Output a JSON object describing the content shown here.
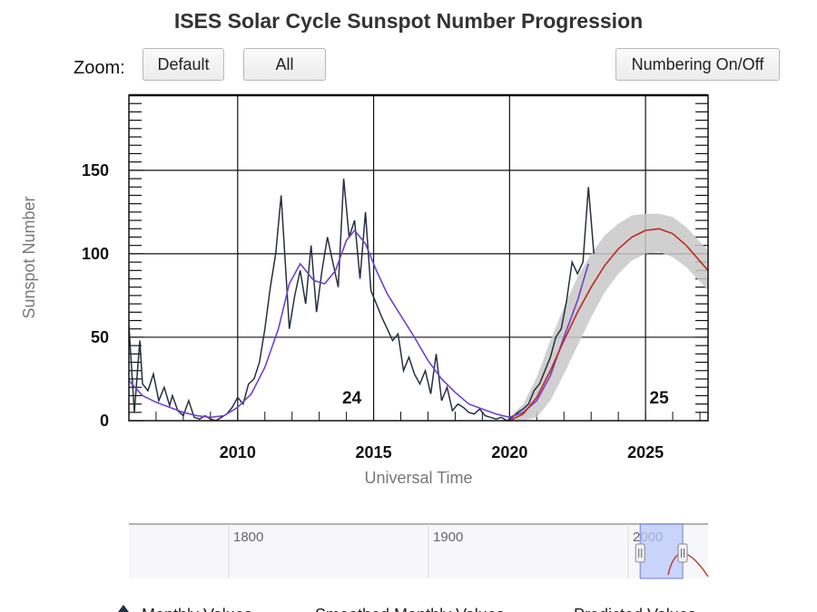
{
  "title": "ISES Solar Cycle Sunspot Number Progression",
  "toolbar": {
    "zoom_label": "Zoom:",
    "default_label": "Default",
    "all_label": "All",
    "numbering_label": "Numbering On/Off"
  },
  "colors": {
    "monthly": "#243040",
    "smoothed": "#7040d0",
    "predicted": "#c0291d",
    "prediction_band": "#c8c8c8",
    "navigator_selection": "#b8c8f8"
  },
  "chart_data": {
    "type": "line",
    "title": "ISES Solar Cycle Sunspot Number Progression",
    "xlabel": "Universal Time",
    "ylabel": "Sunspot Number",
    "xlim": [
      2006.0,
      2027.3
    ],
    "ylim": [
      0,
      195
    ],
    "x_ticks": [
      2010,
      2015,
      2020,
      2025
    ],
    "y_ticks": [
      0,
      50,
      100,
      150
    ],
    "grid": true,
    "cycle_labels": [
      {
        "label": "24",
        "x": 2014.2
      },
      {
        "label": "25",
        "x": 2025.5
      }
    ],
    "series": [
      {
        "name": "Monthly Values",
        "x": [
          2006.0,
          2006.2,
          2006.4,
          2006.5,
          2006.7,
          2006.9,
          2007.1,
          2007.3,
          2007.5,
          2007.6,
          2007.8,
          2008.0,
          2008.2,
          2008.4,
          2008.6,
          2008.8,
          2009.0,
          2009.2,
          2009.4,
          2009.6,
          2009.8,
          2010.0,
          2010.2,
          2010.4,
          2010.6,
          2010.8,
          2011.0,
          2011.2,
          2011.4,
          2011.6,
          2011.8,
          2011.9,
          2012.1,
          2012.3,
          2012.5,
          2012.7,
          2012.9,
          2013.1,
          2013.3,
          2013.5,
          2013.7,
          2013.9,
          2014.1,
          2014.3,
          2014.5,
          2014.7,
          2014.9,
          2015.1,
          2015.3,
          2015.5,
          2015.7,
          2015.9,
          2016.1,
          2016.3,
          2016.5,
          2016.7,
          2016.9,
          2017.1,
          2017.3,
          2017.5,
          2017.7,
          2017.9,
          2018.1,
          2018.3,
          2018.5,
          2018.7,
          2018.9,
          2019.1,
          2019.3,
          2019.5,
          2019.7,
          2019.9,
          2020.1,
          2020.3,
          2020.5,
          2020.7,
          2020.9,
          2021.1,
          2021.3,
          2021.5,
          2021.7,
          2021.9,
          2022.1,
          2022.3,
          2022.5,
          2022.7,
          2022.9,
          2023.0,
          2023.1
        ],
        "y": [
          57,
          5,
          48,
          22,
          18,
          28,
          12,
          20,
          9,
          15,
          6,
          3,
          12,
          2,
          1,
          3,
          1,
          0,
          2,
          4,
          8,
          14,
          10,
          22,
          25,
          35,
          55,
          80,
          100,
          135,
          82,
          55,
          75,
          90,
          70,
          105,
          65,
          90,
          110,
          95,
          80,
          145,
          110,
          120,
          85,
          125,
          78,
          70,
          62,
          55,
          48,
          52,
          30,
          38,
          28,
          22,
          30,
          16,
          40,
          12,
          20,
          6,
          10,
          8,
          5,
          4,
          7,
          3,
          2,
          1,
          2,
          0,
          2,
          5,
          7,
          10,
          18,
          22,
          30,
          38,
          50,
          55,
          72,
          95,
          88,
          95,
          140,
          120,
          100
        ],
        "color": "#243040"
      },
      {
        "name": "Smoothed Monthly Values",
        "x": [
          2006.0,
          2006.5,
          2007.0,
          2007.5,
          2008.0,
          2008.5,
          2009.0,
          2009.5,
          2010.0,
          2010.5,
          2011.0,
          2011.5,
          2011.9,
          2012.3,
          2012.8,
          2013.2,
          2013.6,
          2014.0,
          2014.3,
          2014.7,
          2015.1,
          2015.5,
          2016.0,
          2016.5,
          2017.0,
          2017.5,
          2018.0,
          2018.5,
          2019.0,
          2019.5,
          2020.0,
          2020.5,
          2021.0,
          2021.5,
          2022.0,
          2022.5,
          2022.9
        ],
        "y": [
          24,
          15,
          11,
          8,
          5,
          3,
          2,
          3,
          8,
          16,
          32,
          55,
          82,
          94,
          84,
          82,
          90,
          108,
          114,
          106,
          90,
          76,
          63,
          50,
          36,
          25,
          17,
          10,
          7,
          4,
          2,
          5,
          12,
          27,
          50,
          72,
          94
        ],
        "color": "#7040d0"
      },
      {
        "name": "Predicted Values",
        "x": [
          2020.0,
          2020.5,
          2021.0,
          2021.5,
          2022.0,
          2022.5,
          2023.0,
          2023.5,
          2024.0,
          2024.5,
          2025.0,
          2025.5,
          2026.0,
          2026.5,
          2027.3
        ],
        "y": [
          0,
          4,
          14,
          30,
          48,
          65,
          80,
          93,
          103,
          110,
          114,
          115,
          112,
          105,
          90
        ],
        "band_low": [
          0,
          0,
          2,
          12,
          28,
          45,
          62,
          77,
          88,
          96,
          100,
          101,
          98,
          92,
          78
        ],
        "band_high": [
          2,
          10,
          26,
          48,
          68,
          86,
          100,
          111,
          118,
          123,
          124,
          124,
          122,
          116,
          102
        ],
        "color": "#c0291d"
      }
    ],
    "navigator": {
      "tick_labels": [
        "1800",
        "1900",
        "2000"
      ],
      "selection": [
        2006.0,
        2027.3
      ]
    },
    "legend": {
      "placement": "bottom",
      "items": [
        "Monthly Values",
        "Smoothed Monthly Values",
        "Predicted Values"
      ]
    }
  }
}
